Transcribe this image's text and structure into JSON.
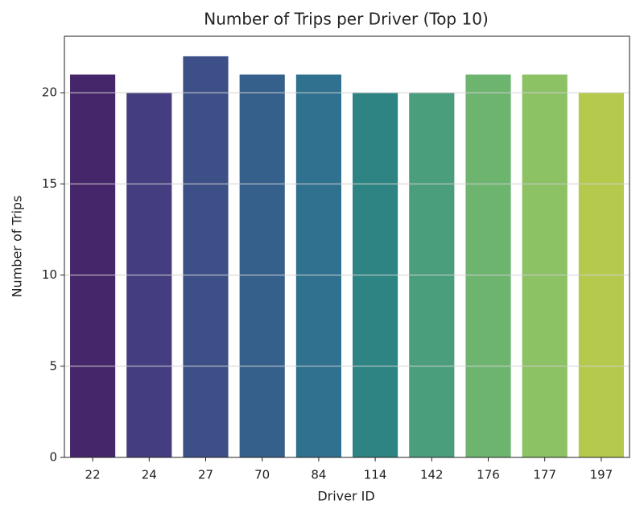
{
  "chart_data": {
    "type": "bar",
    "title": "Number of Trips per Driver (Top 10)",
    "x_label": "Driver ID",
    "y_label": "Number of Trips",
    "categories": [
      "22",
      "24",
      "27",
      "70",
      "84",
      "114",
      "142",
      "176",
      "177",
      "197"
    ],
    "values": [
      21,
      20,
      22,
      21,
      21,
      20,
      20,
      21,
      21,
      20
    ],
    "colors": [
      "#46266a",
      "#443d7f",
      "#3d4f87",
      "#35608c",
      "#2f718e",
      "#2d8483",
      "#4a9e7c",
      "#6db56f",
      "#8cc164",
      "#b5c94c"
    ],
    "ylim": [
      0,
      23.1
    ],
    "yticks": [
      0,
      5,
      10,
      15,
      20
    ],
    "grid": true
  }
}
